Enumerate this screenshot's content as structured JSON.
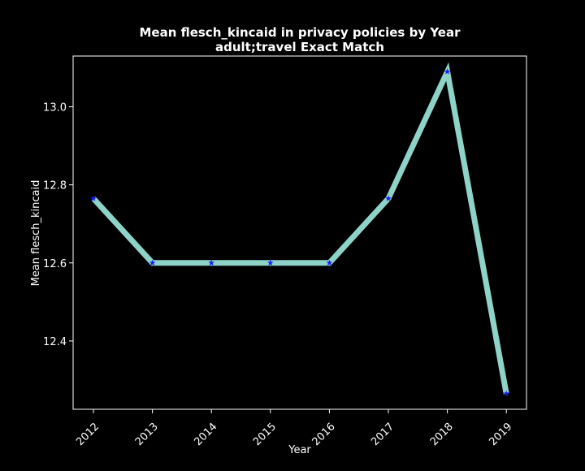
{
  "chart_data": {
    "type": "line",
    "title": "Mean flesch_kincaid in privacy policies by Year",
    "subtitle": "adult;travel Exact Match",
    "xlabel": "Year",
    "ylabel": "Mean flesch_kincaid",
    "categories": [
      "2012",
      "2013",
      "2014",
      "2015",
      "2016",
      "2017",
      "2018",
      "2019"
    ],
    "values": [
      12.765,
      12.6,
      12.6,
      12.6,
      12.6,
      12.765,
      13.09,
      12.265
    ],
    "ylim": [
      12.225,
      13.13
    ],
    "yticks": [
      12.4,
      12.6,
      12.8,
      13.0
    ],
    "ytick_labels": [
      "12.4",
      "12.6",
      "12.8",
      "13.0"
    ],
    "grid": false,
    "background_color": "#000000",
    "line_color": "#8dd3c7",
    "marker_color": "#1a1aff",
    "marker": "star"
  }
}
